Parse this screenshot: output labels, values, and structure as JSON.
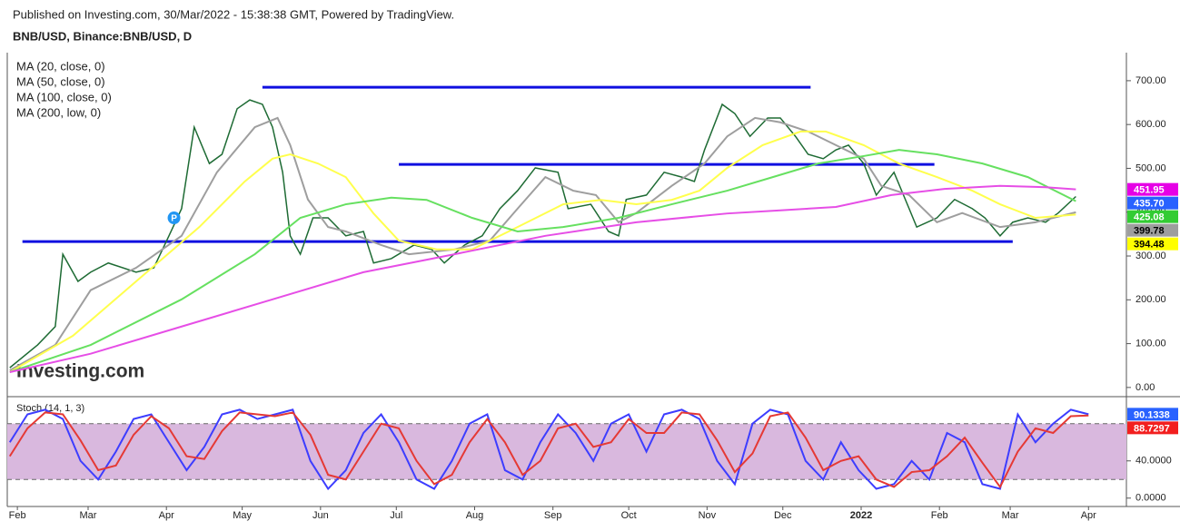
{
  "header": {
    "published": "Published on Investing.com, 30/Mar/2022 - 15:38:38 GMT, Powered by TradingView.",
    "symbol": "BNB/USD, Binance:BNB/USD, D",
    "watermark": "Investing.com"
  },
  "chart_data": [
    {
      "type": "line",
      "xlim": [
        -4,
        439
      ],
      "ylim": [
        -21,
        764
      ],
      "yticks": [
        {
          "value": 0,
          "label": "0.00"
        },
        {
          "value": 100,
          "label": "100.00"
        },
        {
          "value": 200,
          "label": "200.00"
        },
        {
          "value": 300,
          "label": "300.00"
        },
        {
          "value": 400,
          "label": "400.00"
        },
        {
          "value": 500,
          "label": "500.00"
        },
        {
          "value": 600,
          "label": "600.00"
        },
        {
          "value": 700,
          "label": "700.00"
        }
      ],
      "series": [
        {
          "color": "#1e6b34",
          "tag_color": "#2962ff",
          "x": [
            -3,
            8,
            15,
            18,
            24,
            29,
            36,
            47,
            54,
            60,
            65,
            70,
            76,
            81,
            87,
            92,
            97,
            101,
            105,
            108,
            112,
            117,
            123,
            130,
            137,
            141,
            148,
            157,
            164,
            169,
            177,
            184,
            191,
            198,
            205,
            214,
            218,
            227,
            234,
            238,
            241,
            249,
            256,
            263,
            268,
            272,
            279,
            284,
            290,
            297,
            302,
            308,
            313,
            319,
            324,
            329,
            335,
            340,
            347,
            353,
            356,
            364,
            371,
            378,
            383,
            389,
            394,
            400,
            407,
            412,
            419
          ],
          "values": [
            45,
            97,
            139,
            304,
            242,
            263,
            284,
            263,
            273,
            346,
            408,
            594,
            511,
            532,
            636,
            656,
            646,
            594,
            491,
            346,
            304,
            387,
            387,
            346,
            356,
            284,
            294,
            325,
            315,
            284,
            325,
            346,
            408,
            449,
            501,
            491,
            408,
            418,
            356,
            346,
            429,
            439,
            491,
            480,
            470,
            542,
            646,
            625,
            573,
            615,
            615,
            573,
            532,
            522,
            542,
            553,
            511,
            439,
            491,
            408,
            366,
            387,
            429,
            408,
            387,
            346,
            377,
            387,
            377,
            398,
            435.7
          ],
          "tag": {
            "value": 435.7,
            "label": "435.70"
          }
        },
        {
          "name": "MA (20, close, 0)",
          "color": "#9e9e9e",
          "tag_color": "#9e9e9e",
          "x": [
            -3,
            15,
            29,
            47,
            65,
            79,
            94,
            103,
            108,
            115,
            123,
            130,
            144,
            155,
            173,
            187,
            198,
            209,
            220,
            229,
            238,
            245,
            259,
            272,
            281,
            292,
            302,
            313,
            324,
            335,
            342,
            353,
            364,
            374,
            389,
            403,
            419
          ],
          "values": [
            39,
            97,
            222,
            273,
            346,
            491,
            594,
            615,
            553,
            429,
            366,
            356,
            325,
            304,
            315,
            335,
            408,
            480,
            449,
            439,
            377,
            398,
            460,
            511,
            573,
            615,
            605,
            584,
            553,
            522,
            460,
            439,
            377,
            398,
            366,
            377,
            399.78
          ],
          "tag": 399.78
        },
        {
          "name": "MA (50, close, 0)",
          "color": "#ffff4d",
          "tag_color": "#ffff00",
          "x": [
            -3,
            22,
            47,
            72,
            90,
            101,
            108,
            119,
            130,
            141,
            151,
            166,
            180,
            198,
            216,
            231,
            245,
            259,
            270,
            281,
            295,
            310,
            320,
            335,
            349,
            364,
            378,
            389,
            403,
            419
          ],
          "values": [
            35,
            118,
            242,
            366,
            470,
            522,
            532,
            511,
            480,
            397,
            335,
            315,
            315,
            366,
            418,
            428,
            418,
            428,
            449,
            501,
            553,
            584,
            584,
            553,
            511,
            480,
            449,
            418,
            387,
            394.48
          ],
          "tag": 394.48
        },
        {
          "name": "MA (100, close, 0)",
          "color": "#66e060",
          "tag_color": "#33cc33",
          "x": [
            -3,
            29,
            65,
            94,
            112,
            130,
            148,
            162,
            180,
            198,
            216,
            238,
            259,
            281,
            299,
            317,
            335,
            349,
            364,
            382,
            400,
            419
          ],
          "values": [
            35,
            97,
            201,
            304,
            387,
            418,
            433,
            428,
            387,
            356,
            366,
            387,
            418,
            449,
            480,
            511,
            528,
            542,
            532,
            511,
            480,
            425.08
          ],
          "tag": 425.08
        },
        {
          "name": "MA (200, low, 0)",
          "color": "#e64ee6",
          "tag_color": "#e600e6",
          "x": [
            -3,
            29,
            65,
            101,
            137,
            173,
            209,
            245,
            281,
            302,
            324,
            346,
            367,
            389,
            407,
            419
          ],
          "values": [
            35,
            77,
            139,
            201,
            263,
            304,
            346,
            377,
            397,
            404,
            412,
            439,
            453,
            460,
            457,
            451.95
          ],
          "tag": 451.95
        }
      ],
      "levels": [
        {
          "x": [
            97,
            314
          ],
          "y": 685
        },
        {
          "x": [
            151,
            363
          ],
          "y": 509
        },
        {
          "x": [
            2,
            394
          ],
          "y": 333
        }
      ],
      "marker": {
        "label": "P",
        "x": 62,
        "y": 387
      }
    },
    {
      "type": "line",
      "title": "Stoch (14, 1, 3)",
      "xlim": [
        -4,
        439
      ],
      "ylim": [
        -9,
        109
      ],
      "yticks": [
        {
          "value": 0,
          "label": "0.0000"
        },
        {
          "value": 40,
          "label": "40.0000"
        }
      ],
      "band": [
        20,
        80
      ],
      "xticks": [
        {
          "value": 0,
          "label": "Feb"
        },
        {
          "value": 28,
          "label": "Mar"
        },
        {
          "value": 59,
          "label": "Apr"
        },
        {
          "value": 89,
          "label": "May"
        },
        {
          "value": 120,
          "label": "Jun"
        },
        {
          "value": 150,
          "label": "Jul"
        },
        {
          "value": 181,
          "label": "Aug"
        },
        {
          "value": 212,
          "label": "Sep"
        },
        {
          "value": 242,
          "label": "Oct"
        },
        {
          "value": 273,
          "label": "Nov"
        },
        {
          "value": 303,
          "label": "Dec"
        },
        {
          "value": 334,
          "label": "2022"
        },
        {
          "value": 365,
          "label": "Feb"
        },
        {
          "value": 393,
          "label": "Mar"
        },
        {
          "value": 424,
          "label": "Apr"
        }
      ],
      "series": [
        {
          "color": "#3d3dff",
          "tag_color": "#2962ff",
          "x": [
            -3,
            4,
            11,
            18,
            25,
            32,
            39,
            46,
            53,
            60,
            67,
            74,
            81,
            88,
            95,
            102,
            109,
            116,
            123,
            130,
            137,
            144,
            151,
            158,
            165,
            172,
            179,
            186,
            193,
            200,
            207,
            214,
            221,
            228,
            235,
            242,
            249,
            256,
            263,
            270,
            277,
            284,
            291,
            298,
            305,
            312,
            319,
            326,
            333,
            340,
            347,
            354,
            361,
            368,
            375,
            382,
            389,
            396,
            403,
            410,
            417,
            424
          ],
          "values": [
            60,
            90,
            95,
            85,
            40,
            20,
            50,
            85,
            90,
            60,
            30,
            55,
            90,
            95,
            85,
            90,
            95,
            40,
            10,
            30,
            70,
            90,
            60,
            20,
            10,
            40,
            80,
            90,
            30,
            20,
            60,
            90,
            70,
            40,
            80,
            90,
            50,
            90,
            95,
            85,
            40,
            15,
            80,
            95,
            90,
            40,
            20,
            60,
            30,
            10,
            15,
            40,
            20,
            70,
            60,
            15,
            10,
            90,
            60,
            80,
            95,
            90.1338
          ],
          "tag": 90.1338
        },
        {
          "color": "#e53935",
          "tag_color": "#f21f1f",
          "x": [
            -3,
            4,
            11,
            18,
            25,
            32,
            39,
            46,
            53,
            60,
            67,
            74,
            81,
            88,
            95,
            102,
            109,
            116,
            123,
            130,
            137,
            144,
            151,
            158,
            165,
            172,
            179,
            186,
            193,
            200,
            207,
            214,
            221,
            228,
            235,
            242,
            249,
            256,
            263,
            270,
            277,
            284,
            291,
            298,
            305,
            312,
            319,
            326,
            333,
            340,
            347,
            354,
            361,
            368,
            375,
            382,
            389,
            396,
            403,
            410,
            417,
            424
          ],
          "values": [
            45,
            75,
            92,
            90,
            62,
            30,
            35,
            68,
            88,
            75,
            45,
            42,
            72,
            92,
            90,
            88,
            92,
            68,
            25,
            20,
            50,
            80,
            75,
            40,
            15,
            25,
            60,
            85,
            60,
            25,
            40,
            75,
            80,
            55,
            60,
            85,
            70,
            70,
            92,
            90,
            62,
            28,
            48,
            88,
            92,
            65,
            30,
            40,
            45,
            20,
            12,
            28,
            30,
            45,
            65,
            38,
            12,
            50,
            75,
            70,
            88,
            88.7297
          ],
          "tag": 88.7297
        }
      ]
    }
  ]
}
